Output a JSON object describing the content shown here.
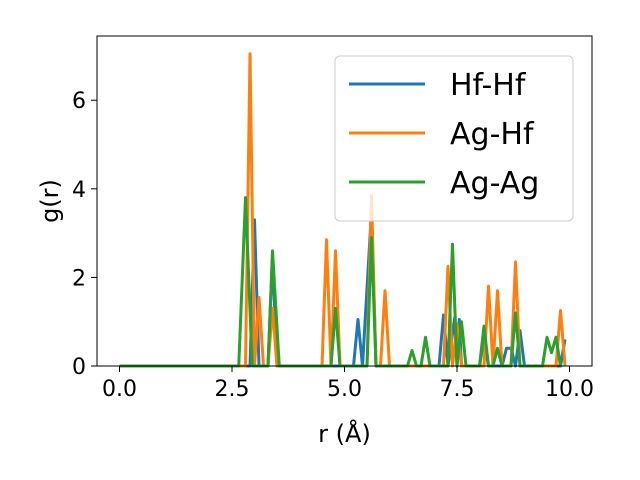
{
  "chart_data": {
    "type": "line",
    "xlabel": "r (Å)",
    "ylabel": "g(r)",
    "xlim": [
      -0.5,
      10.5
    ],
    "ylim": [
      0,
      7.45
    ],
    "xticks": [
      0.0,
      2.5,
      5.0,
      7.5,
      10.0
    ],
    "xtick_labels": [
      "0.0",
      "2.5",
      "5.0",
      "7.5",
      "10.0"
    ],
    "yticks": [
      0,
      2,
      4,
      6
    ],
    "ytick_labels": [
      "0",
      "2",
      "4",
      "6"
    ],
    "grid": false,
    "legend_position": "top-right",
    "series": [
      {
        "name": "Hf-Hf",
        "color": "#1f77b4",
        "points": [
          [
            0,
            0
          ],
          [
            2.7,
            0
          ],
          [
            2.9,
            0
          ],
          [
            3.0,
            3.3
          ],
          [
            3.1,
            0
          ],
          [
            3.3,
            0
          ],
          [
            3.4,
            2.5
          ],
          [
            3.5,
            0
          ],
          [
            5.2,
            0
          ],
          [
            5.3,
            1.05
          ],
          [
            5.4,
            0
          ],
          [
            5.6,
            3.5
          ],
          [
            5.7,
            0
          ],
          [
            7.1,
            0
          ],
          [
            7.2,
            1.15
          ],
          [
            7.3,
            0
          ],
          [
            7.45,
            1.1
          ],
          [
            7.5,
            0
          ],
          [
            7.55,
            1.05
          ],
          [
            7.6,
            0
          ],
          [
            8.0,
            0
          ],
          [
            8.1,
            0.6
          ],
          [
            8.2,
            0
          ],
          [
            8.5,
            0
          ],
          [
            8.6,
            0.4
          ],
          [
            8.7,
            0.4
          ],
          [
            8.8,
            0
          ],
          [
            8.9,
            0.8
          ],
          [
            9.0,
            0
          ],
          [
            9.8,
            0
          ],
          [
            9.9,
            0.6
          ]
        ]
      },
      {
        "name": "Ag-Hf",
        "color": "#ff7f0e",
        "points": [
          [
            0,
            0
          ],
          [
            2.8,
            0
          ],
          [
            2.9,
            7.05
          ],
          [
            3.0,
            0
          ],
          [
            3.1,
            1.55
          ],
          [
            3.2,
            0
          ],
          [
            3.3,
            0
          ],
          [
            3.4,
            1.3
          ],
          [
            3.5,
            0
          ],
          [
            4.5,
            0
          ],
          [
            4.6,
            2.85
          ],
          [
            4.7,
            0
          ],
          [
            4.8,
            2.6
          ],
          [
            4.9,
            0
          ],
          [
            5.5,
            0
          ],
          [
            5.6,
            3.85
          ],
          [
            5.7,
            0
          ],
          [
            5.8,
            0
          ],
          [
            5.9,
            1.7
          ],
          [
            6.0,
            0
          ],
          [
            7.2,
            0
          ],
          [
            7.3,
            2.25
          ],
          [
            7.4,
            0
          ],
          [
            7.5,
            0.95
          ],
          [
            7.6,
            0
          ],
          [
            8.1,
            0
          ],
          [
            8.2,
            1.8
          ],
          [
            8.3,
            0
          ],
          [
            8.4,
            1.7
          ],
          [
            8.5,
            0
          ],
          [
            8.7,
            0
          ],
          [
            8.8,
            2.35
          ],
          [
            8.9,
            0
          ],
          [
            9.7,
            0
          ],
          [
            9.8,
            1.25
          ],
          [
            9.9,
            0
          ]
        ]
      },
      {
        "name": "Ag-Ag",
        "color": "#2ca02c",
        "points": [
          [
            0,
            0
          ],
          [
            2.65,
            0
          ],
          [
            2.8,
            3.8
          ],
          [
            2.95,
            0
          ],
          [
            3.3,
            0
          ],
          [
            3.4,
            2.6
          ],
          [
            3.55,
            0
          ],
          [
            4.7,
            0
          ],
          [
            4.8,
            1.3
          ],
          [
            4.9,
            0
          ],
          [
            5.5,
            0
          ],
          [
            5.6,
            2.9
          ],
          [
            5.7,
            0
          ],
          [
            6.4,
            0
          ],
          [
            6.5,
            0.35
          ],
          [
            6.6,
            0
          ],
          [
            6.7,
            0
          ],
          [
            6.8,
            0.65
          ],
          [
            6.9,
            0
          ],
          [
            7.3,
            0
          ],
          [
            7.4,
            2.75
          ],
          [
            7.5,
            0
          ],
          [
            7.6,
            1.0
          ],
          [
            7.7,
            0
          ],
          [
            8.0,
            0
          ],
          [
            8.1,
            0.9
          ],
          [
            8.2,
            0
          ],
          [
            8.3,
            0
          ],
          [
            8.4,
            0.4
          ],
          [
            8.5,
            0
          ],
          [
            8.7,
            0
          ],
          [
            8.8,
            1.2
          ],
          [
            8.9,
            0
          ],
          [
            9.4,
            0
          ],
          [
            9.5,
            0.65
          ],
          [
            9.6,
            0.3
          ],
          [
            9.7,
            0.65
          ],
          [
            9.8,
            0
          ]
        ]
      }
    ]
  }
}
